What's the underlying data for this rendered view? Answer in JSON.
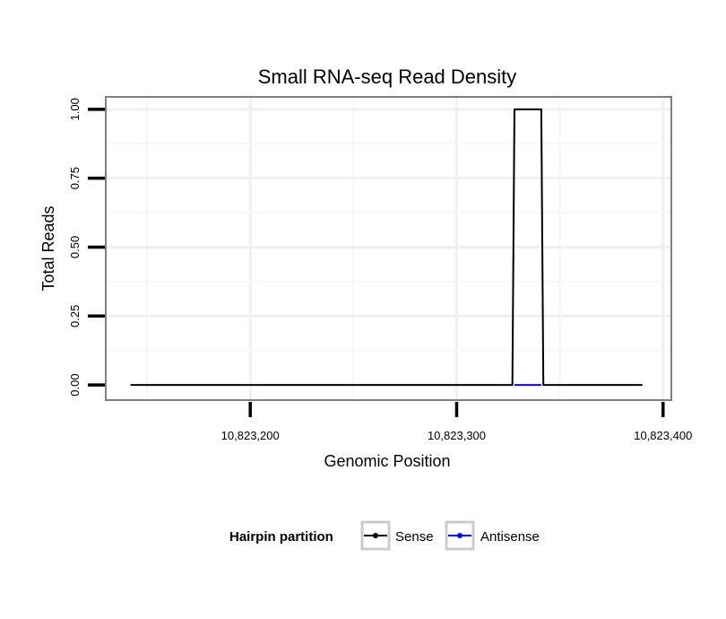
{
  "chart_data": {
    "type": "line",
    "title": "Small RNA-seq Read Density",
    "xlabel": "Genomic Position",
    "ylabel": "Total Reads",
    "xlim": [
      10823130,
      10823404
    ],
    "ylim": [
      -0.055,
      1.045
    ],
    "x_ticks": [
      10823200,
      10823300,
      10823400
    ],
    "x_tick_labels": [
      "10,823,200",
      "10,823,300",
      "10,823,400"
    ],
    "y_ticks": [
      0,
      0.25,
      0.5,
      0.75,
      1.0
    ],
    "y_tick_labels": [
      "0.00",
      "0.25",
      "0.50",
      "0.75",
      "1.00"
    ],
    "grid": true,
    "legend": {
      "title": "Hairpin partition",
      "position": "bottom"
    },
    "series": [
      {
        "name": "Sense",
        "color": "#000000",
        "x": [
          10823142,
          10823327,
          10823328,
          10823341,
          10823342,
          10823390
        ],
        "y": [
          0,
          0,
          1,
          1,
          0,
          0
        ]
      },
      {
        "name": "Antisense",
        "color": "#0000ff",
        "x": [
          10823328,
          10823341
        ],
        "y": [
          0,
          0
        ]
      }
    ]
  }
}
